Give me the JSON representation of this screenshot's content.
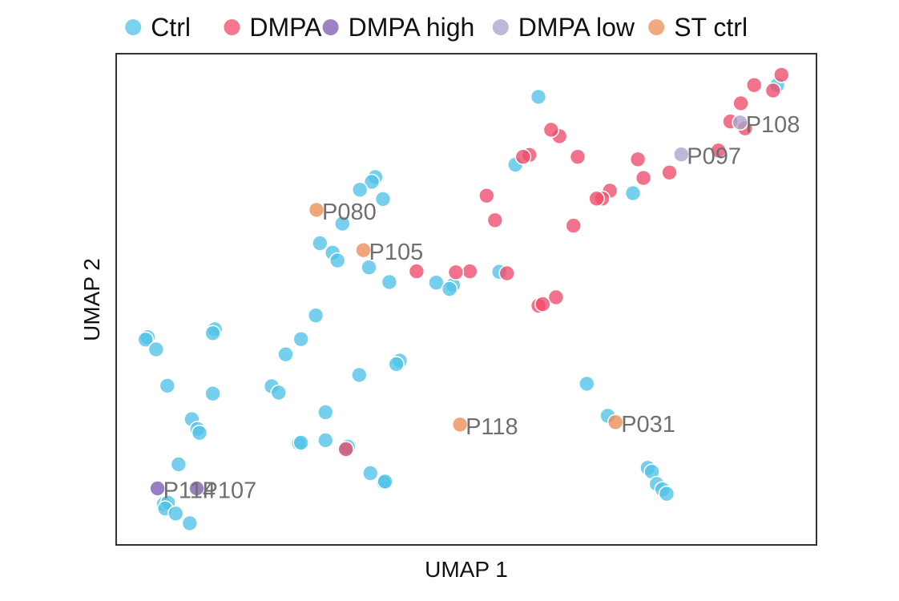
{
  "chart_data": {
    "type": "scatter",
    "xlabel": "UMAP 1",
    "ylabel": "UMAP 2",
    "xlim": [
      0,
      100
    ],
    "ylim": [
      0,
      100
    ],
    "grid": false,
    "legend_position": "top",
    "series": [
      {
        "name": "Ctrl",
        "color": "#4fc3e8",
        "points": [
          [
            60.3,
            91.2
          ],
          [
            57.0,
            77.4
          ],
          [
            37.0,
            74.9
          ],
          [
            36.5,
            73.9
          ],
          [
            34.8,
            72.3
          ],
          [
            38.1,
            70.4
          ],
          [
            32.3,
            65.4
          ],
          [
            29.1,
            61.4
          ],
          [
            30.9,
            59.5
          ],
          [
            31.6,
            57.9
          ],
          [
            36.1,
            56.5
          ],
          [
            39.0,
            53.5
          ],
          [
            45.7,
            53.4
          ],
          [
            48.1,
            52.9
          ],
          [
            47.6,
            52.1
          ],
          [
            54.7,
            55.6
          ],
          [
            73.8,
            71.6
          ],
          [
            94.4,
            93.6
          ],
          [
            4.5,
            42.3
          ],
          [
            4.2,
            41.8
          ],
          [
            5.7,
            39.8
          ],
          [
            14.1,
            43.9
          ],
          [
            13.8,
            43.1
          ],
          [
            28.5,
            46.7
          ],
          [
            26.4,
            41.9
          ],
          [
            24.2,
            38.8
          ],
          [
            40.5,
            37.5
          ],
          [
            40.0,
            36.8
          ],
          [
            34.7,
            34.6
          ],
          [
            22.2,
            32.3
          ],
          [
            23.2,
            31.0
          ],
          [
            7.3,
            32.4
          ],
          [
            13.8,
            30.8
          ],
          [
            10.8,
            25.6
          ],
          [
            11.6,
            23.6
          ],
          [
            11.9,
            22.8
          ],
          [
            29.9,
            27.0
          ],
          [
            8.9,
            16.4
          ],
          [
            26.1,
            20.7
          ],
          [
            26.4,
            20.8
          ],
          [
            29.9,
            21.3
          ],
          [
            33.1,
            20.0
          ],
          [
            32.8,
            19.4
          ],
          [
            36.3,
            14.6
          ],
          [
            38.2,
            12.7
          ],
          [
            38.4,
            12.9
          ],
          [
            67.2,
            32.8
          ],
          [
            70.2,
            26.3
          ],
          [
            75.9,
            15.7
          ],
          [
            76.5,
            14.9
          ],
          [
            77.2,
            12.4
          ],
          [
            78.0,
            11.3
          ],
          [
            78.6,
            10.4
          ],
          [
            6.8,
            8.3
          ],
          [
            7.4,
            8.6
          ],
          [
            7.0,
            7.4
          ],
          [
            8.5,
            6.4
          ],
          [
            10.5,
            4.4
          ]
        ]
      },
      {
        "name": "DMPA",
        "color": "#f04a6a",
        "points": [
          [
            95.0,
            95.7
          ],
          [
            93.8,
            92.5
          ],
          [
            91.1,
            93.6
          ],
          [
            89.2,
            89.9
          ],
          [
            87.7,
            86.2
          ],
          [
            89.8,
            84.8
          ],
          [
            86.0,
            80.3
          ],
          [
            79.0,
            75.8
          ],
          [
            75.3,
            74.7
          ],
          [
            74.5,
            78.5
          ],
          [
            70.5,
            72.1
          ],
          [
            69.4,
            70.5
          ],
          [
            68.6,
            70.5
          ],
          [
            65.9,
            79.0
          ],
          [
            63.3,
            83.2
          ],
          [
            62.1,
            84.5
          ],
          [
            59.0,
            79.4
          ],
          [
            58.1,
            79.0
          ],
          [
            52.9,
            71.1
          ],
          [
            54.1,
            66.1
          ],
          [
            65.3,
            65.0
          ],
          [
            62.8,
            50.4
          ],
          [
            60.3,
            48.7
          ],
          [
            60.9,
            49.0
          ],
          [
            55.8,
            55.3
          ],
          [
            50.5,
            55.7
          ],
          [
            48.5,
            55.5
          ],
          [
            42.9,
            55.7
          ],
          [
            32.8,
            19.5
          ]
        ]
      },
      {
        "name": "DMPA high",
        "color": "#7b5bb0",
        "points": [
          [
            5.9,
            11.5
          ],
          [
            11.5,
            11.5
          ]
        ]
      },
      {
        "name": "DMPA low",
        "color": "#aaa1cc",
        "points": [
          [
            89.1,
            86.0
          ],
          [
            80.7,
            79.5
          ]
        ]
      },
      {
        "name": "ST ctrl",
        "color": "#eb8d55",
        "points": [
          [
            28.6,
            68.2
          ],
          [
            35.3,
            60.0
          ],
          [
            49.1,
            24.5
          ],
          [
            71.3,
            25.0
          ]
        ]
      }
    ],
    "annotations": [
      {
        "text": "P108",
        "x": 89.1,
        "y": 86.0
      },
      {
        "text": "P097",
        "x": 80.7,
        "y": 79.5
      },
      {
        "text": "P080",
        "x": 28.6,
        "y": 68.2
      },
      {
        "text": "P105",
        "x": 35.3,
        "y": 60.0
      },
      {
        "text": "P118",
        "x": 49.1,
        "y": 24.5
      },
      {
        "text": "P031",
        "x": 71.3,
        "y": 25.0
      },
      {
        "text": "P114",
        "x": 5.9,
        "y": 11.5
      },
      {
        "text": "P107",
        "x": 11.5,
        "y": 11.5
      }
    ]
  }
}
